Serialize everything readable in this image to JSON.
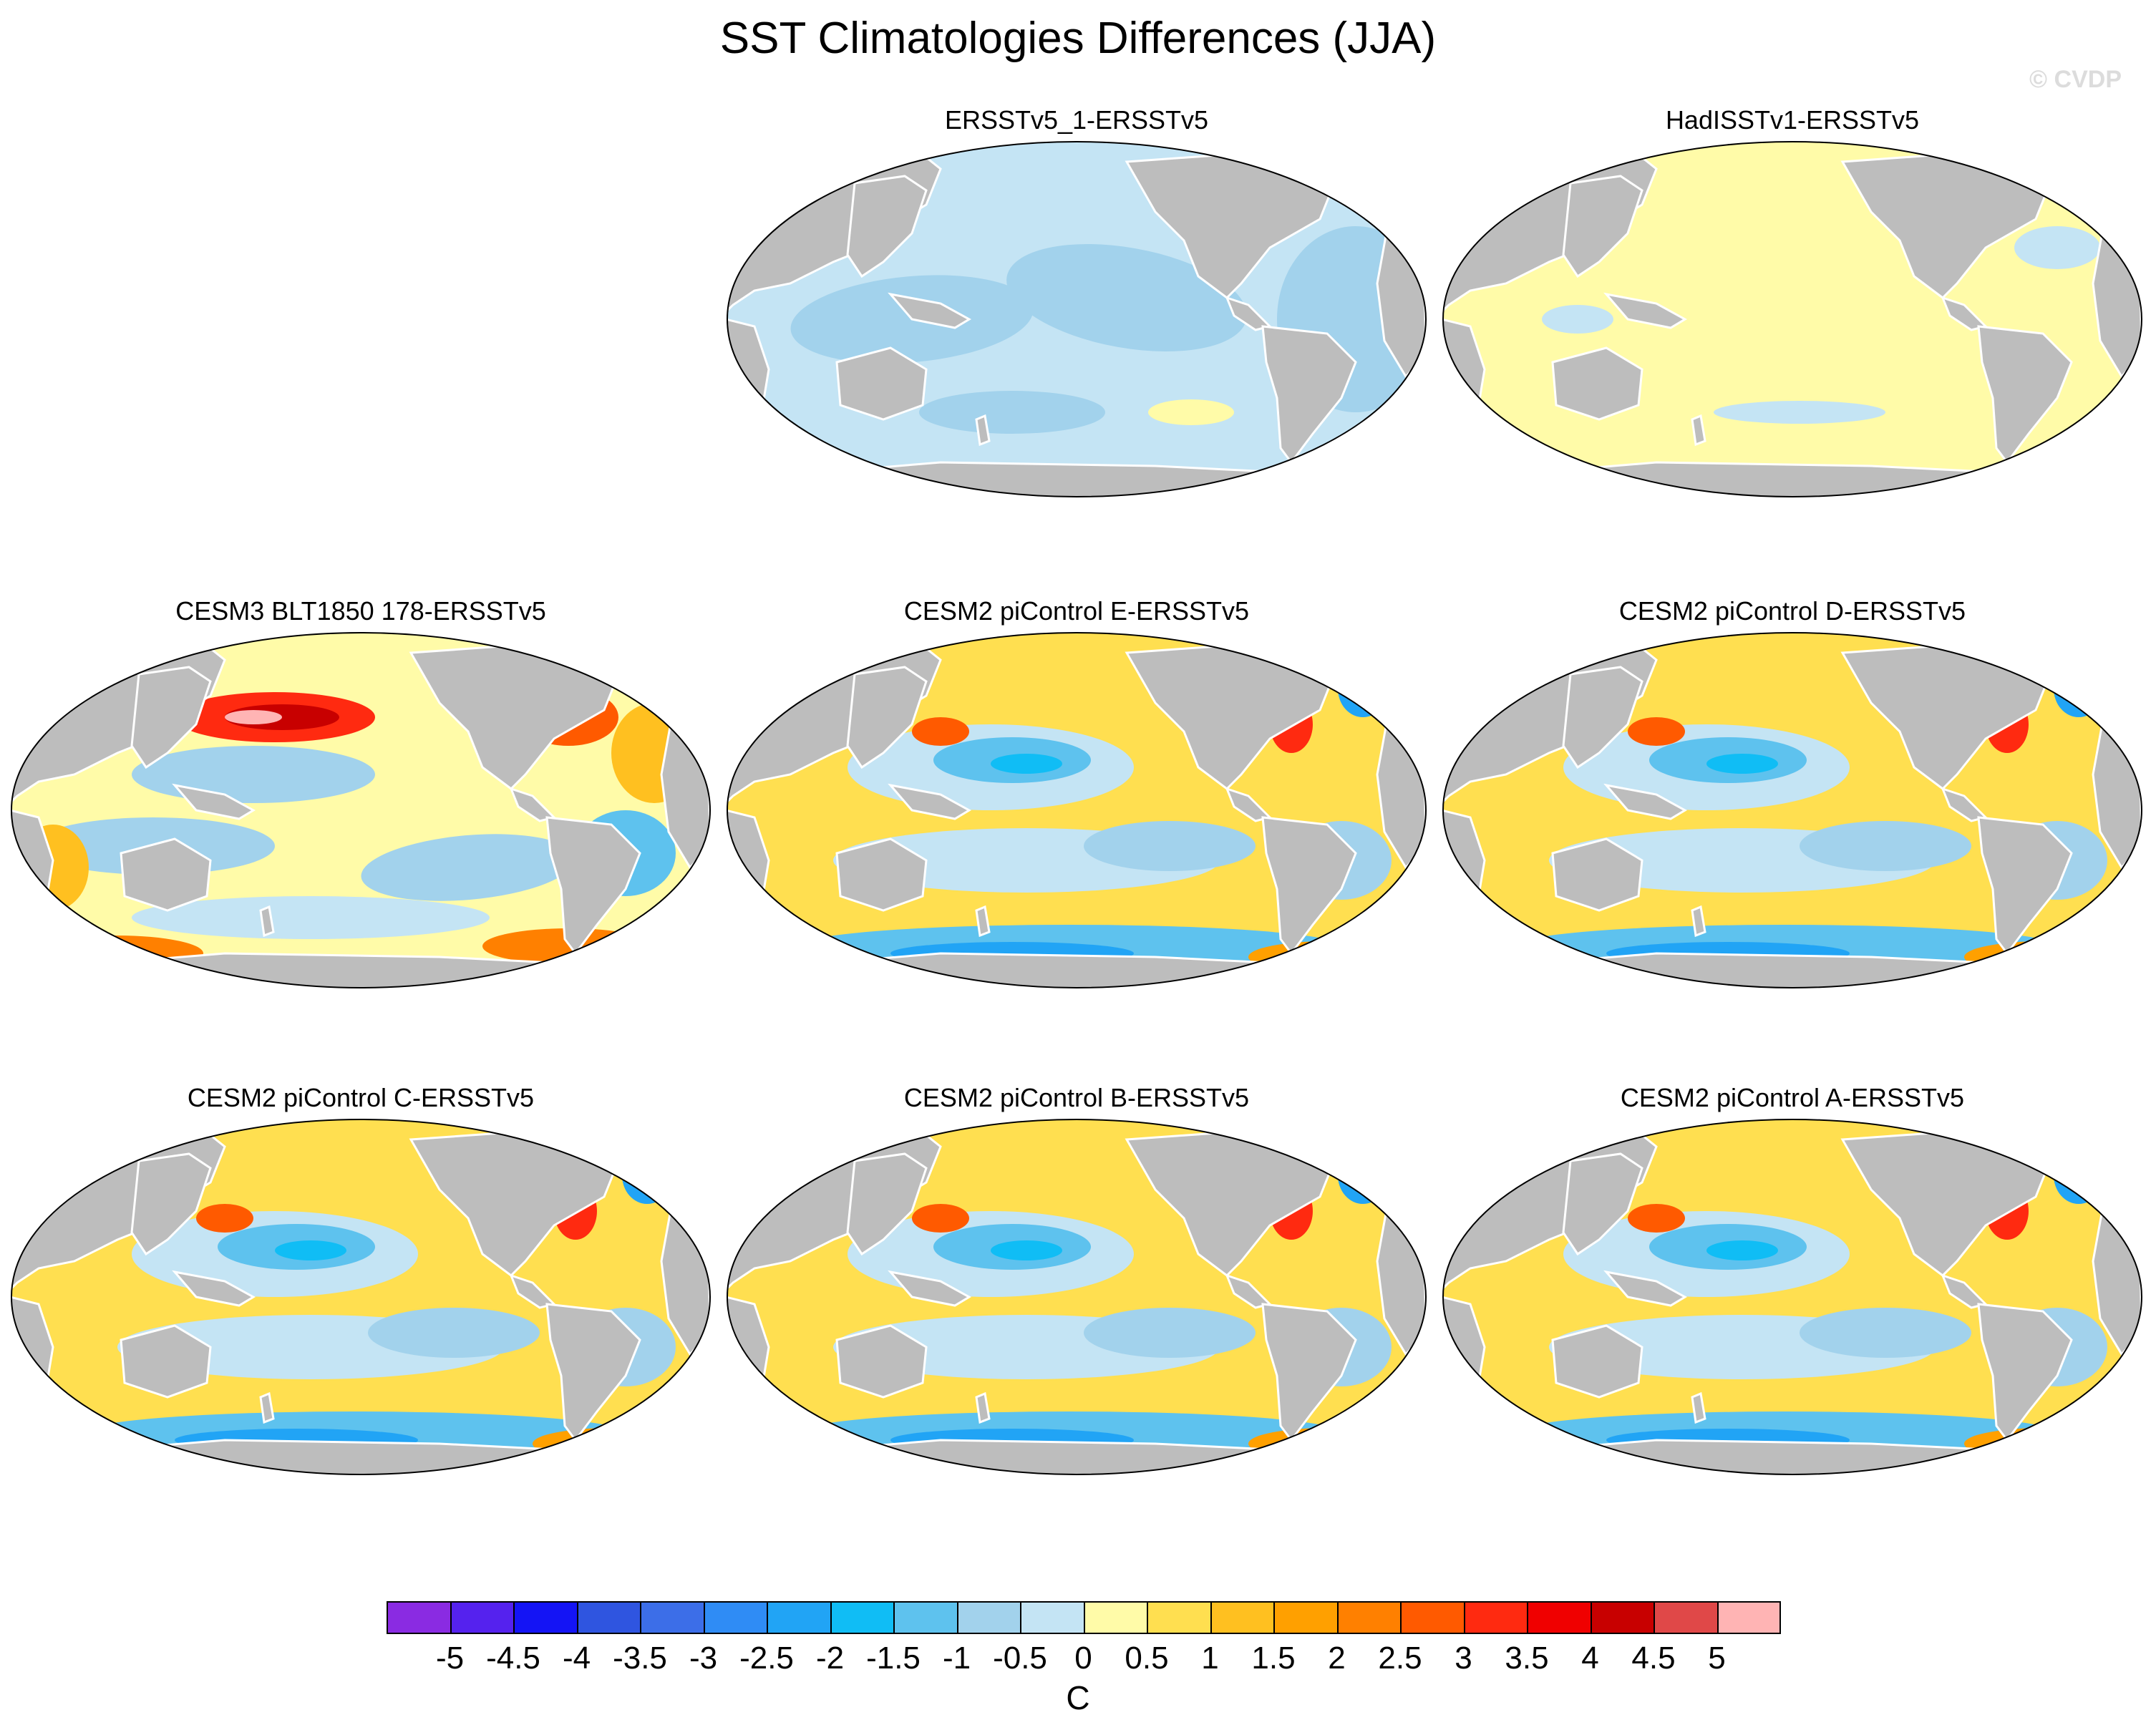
{
  "title": "SST Climatologies Differences (JJA)",
  "watermark": "© CVDP",
  "colors": {
    "land": "#bdbdbd",
    "ocean_bg": "#fff5a8"
  },
  "panels": [
    {
      "title": "ERSSTv5_1-ERSSTv5",
      "style": "cool"
    },
    {
      "title": "HadISSTv1-ERSSTv5",
      "style": "warm"
    },
    {
      "title": "CESM3 BLT1850 178-ERSSTv5",
      "style": "cesm3"
    },
    {
      "title": "CESM2 piControl E-ERSSTv5",
      "style": "cesm2"
    },
    {
      "title": "CESM2 piControl D-ERSSTv5",
      "style": "cesm2"
    },
    {
      "title": "CESM2 piControl C-ERSSTv5",
      "style": "cesm2"
    },
    {
      "title": "CESM2 piControl B-ERSSTv5",
      "style": "cesm2"
    },
    {
      "title": "CESM2 piControl A-ERSSTv5",
      "style": "cesm2"
    }
  ],
  "colorbar": {
    "unit": "C",
    "labels": [
      "-5",
      "-4.5",
      "-4",
      "-3.5",
      "-3",
      "-2.5",
      "-2",
      "-1.5",
      "-1",
      "-0.5",
      "0",
      "0.5",
      "1",
      "1.5",
      "2",
      "2.5",
      "3",
      "3.5",
      "4",
      "4.5",
      "5"
    ],
    "colors": [
      "#8a2be2",
      "#5522ee",
      "#1414f5",
      "#2f55e0",
      "#3c6ee8",
      "#2f8cf5",
      "#21a4f5",
      "#10bdf5",
      "#5ec2ee",
      "#a2d2ec",
      "#c4e4f4",
      "#fffba8",
      "#ffdf50",
      "#ffc020",
      "#ffa000",
      "#ff8000",
      "#ff5a00",
      "#ff2a10",
      "#f00000",
      "#c80000",
      "#e04848",
      "#ffb4b4"
    ]
  }
}
